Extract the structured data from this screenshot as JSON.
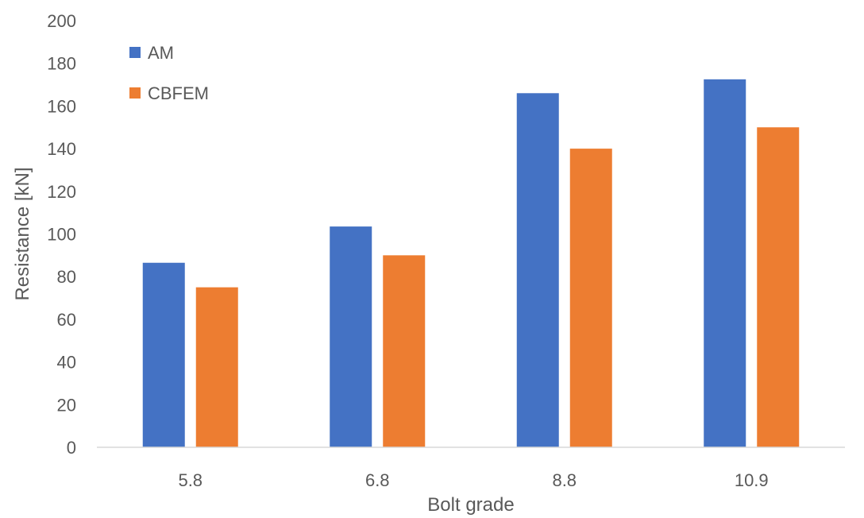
{
  "chart_data": {
    "type": "bar",
    "title": "",
    "xlabel": "Bolt grade",
    "ylabel": "Resistance [kN]",
    "categories": [
      "5.8",
      "6.8",
      "8.8",
      "10.9"
    ],
    "series": [
      {
        "name": "AM",
        "color": "#4472C4",
        "values": [
          86.5,
          103.5,
          166,
          172.5
        ]
      },
      {
        "name": "CBFEM",
        "color": "#ED7D31",
        "values": [
          75,
          90,
          140,
          150
        ]
      }
    ],
    "ylim": [
      0,
      200
    ],
    "yticks": [
      0,
      20,
      40,
      60,
      80,
      100,
      120,
      140,
      160,
      180,
      200
    ],
    "grid": false,
    "legend_position": "top-left"
  }
}
